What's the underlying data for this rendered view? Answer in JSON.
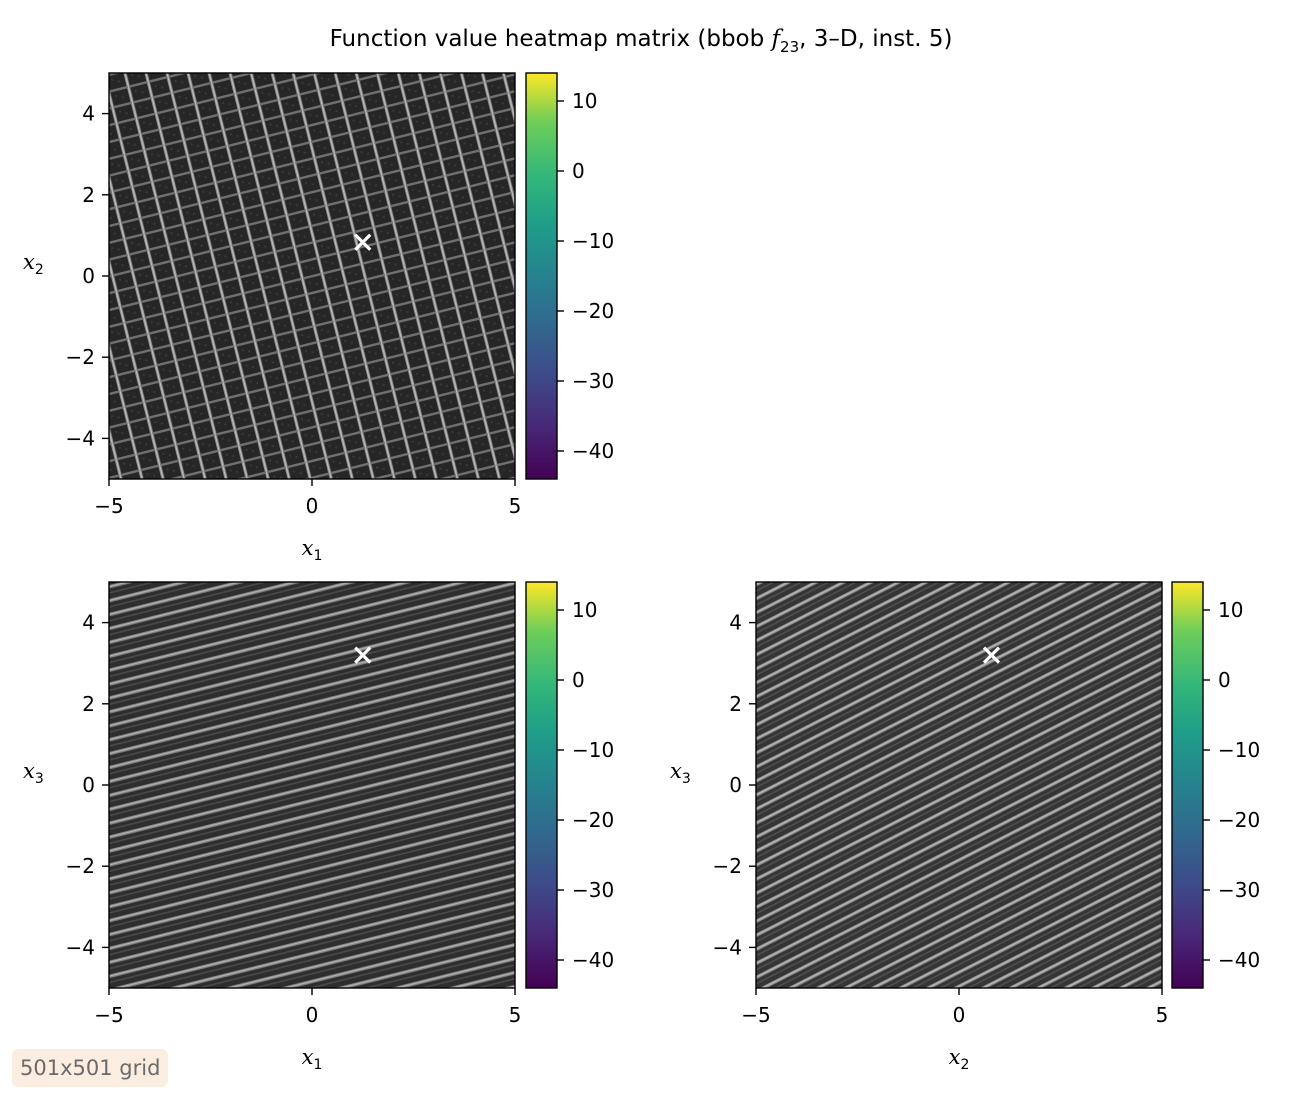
{
  "figure": {
    "title_prefix": "Function value heatmap matrix (bbob ",
    "title_func": "f",
    "title_func_sub": "23",
    "title_suffix": ", 3–D, inst. 5)",
    "badge": "501x501 grid"
  },
  "chart_data": [
    {
      "type": "heatmap",
      "panel": "x1-x2",
      "xlabel": "x",
      "xlabel_sub": "1",
      "ylabel": "x",
      "ylabel_sub": "2",
      "xlim": [
        -5,
        5
      ],
      "ylim": [
        -5,
        5
      ],
      "xticks": [
        -5,
        0,
        5
      ],
      "yticks": [
        -4,
        -2,
        0,
        2,
        4
      ],
      "colorbar": {
        "vmin": -44,
        "vmax": 14,
        "ticks": [
          10,
          0,
          -10,
          -20,
          -30,
          -40
        ],
        "colormap": "viridis"
      },
      "optimum_marker": {
        "x": 1.25,
        "y": 0.83,
        "symbol": "x",
        "color": "#ffffff"
      },
      "pattern": "rotated lattice of dark cells with light ridges"
    },
    {
      "type": "heatmap",
      "panel": "x1-x3",
      "xlabel": "x",
      "xlabel_sub": "1",
      "ylabel": "x",
      "ylabel_sub": "3",
      "xlim": [
        -5,
        5
      ],
      "ylim": [
        -5,
        5
      ],
      "xticks": [
        -5,
        0,
        5
      ],
      "yticks": [
        -4,
        -2,
        0,
        2,
        4
      ],
      "colorbar": {
        "vmin": -44,
        "vmax": 14,
        "ticks": [
          10,
          0,
          -10,
          -20,
          -30,
          -40
        ],
        "colormap": "viridis"
      },
      "optimum_marker": {
        "x": 1.25,
        "y": 3.2,
        "symbol": "x",
        "color": "#ffffff"
      },
      "pattern": "tilted stripes"
    },
    {
      "type": "heatmap",
      "panel": "x2-x3",
      "xlabel": "x",
      "xlabel_sub": "2",
      "ylabel": "x",
      "ylabel_sub": "3",
      "xlim": [
        -5,
        5
      ],
      "ylim": [
        -5,
        5
      ],
      "xticks": [
        -5,
        0,
        5
      ],
      "yticks": [
        -4,
        -2,
        0,
        2,
        4
      ],
      "colorbar": {
        "vmin": -44,
        "vmax": 14,
        "ticks": [
          10,
          0,
          -10,
          -20,
          -30,
          -40
        ],
        "colormap": "viridis"
      },
      "optimum_marker": {
        "x": 0.8,
        "y": 3.2,
        "symbol": "x",
        "color": "#ffffff"
      },
      "pattern": "diagonal stripes"
    }
  ]
}
